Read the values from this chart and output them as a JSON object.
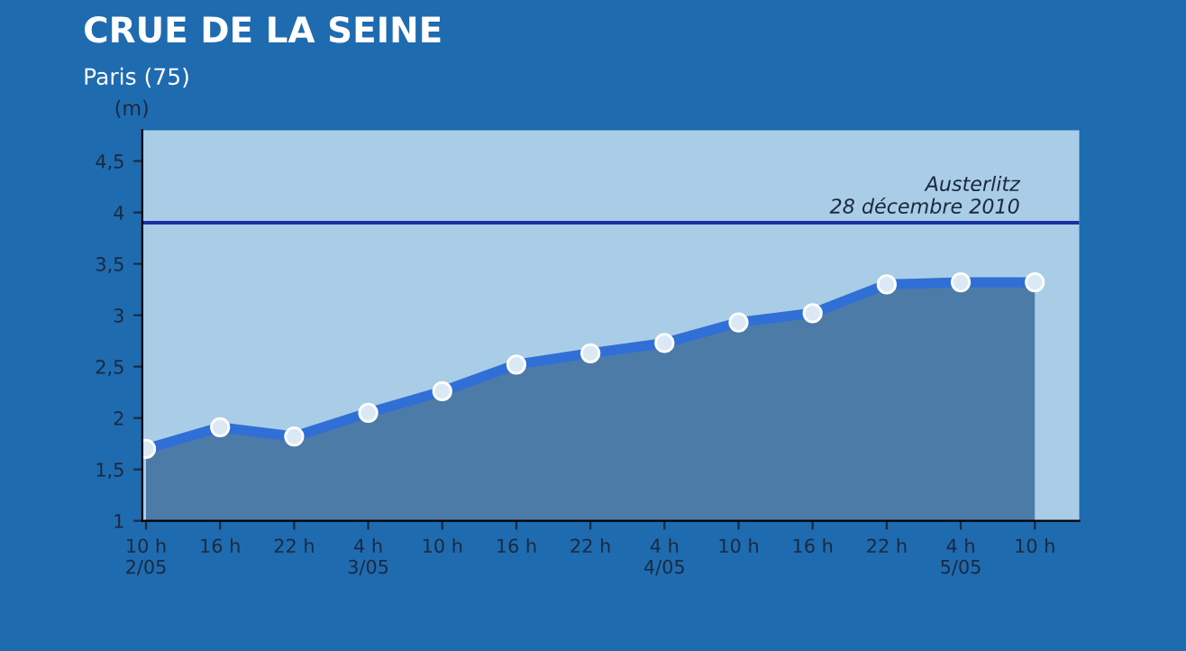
{
  "chart_data": {
    "type": "area",
    "title": "CRUE DE LA SEINE",
    "subtitle": "Paris (75)",
    "ylabel": "(m)",
    "categories": [
      "10 h\n2/05",
      "16 h",
      "22 h",
      "4 h\n3/05",
      "10 h",
      "16 h",
      "22 h",
      "4 h\n4/05",
      "10 h",
      "16 h",
      "22 h",
      "4 h\n5/05",
      "10 h"
    ],
    "series": [
      {
        "color": "#2f6fd6",
        "values": [
          1.7,
          1.91,
          1.82,
          2.05,
          2.26,
          2.52,
          2.63,
          2.73,
          2.93,
          3.02,
          3.3,
          3.32,
          3.32
        ]
      }
    ],
    "ylim": [
      1,
      4.8
    ],
    "yticks": [
      1,
      {
        "value": 1.5,
        "label": "1,5"
      },
      2,
      {
        "value": 2.5,
        "label": "2,5"
      },
      3,
      {
        "value": 3.5,
        "label": "3,5"
      },
      4,
      {
        "value": 4.5,
        "label": "4,5"
      }
    ],
    "ref_lines": [
      {
        "axis": "y",
        "value": 3.9,
        "label": "Austerlitz\n28 décembre 2010",
        "color": "#1a2fa0"
      }
    ],
    "marker": "circle",
    "grid": false,
    "legend": false
  }
}
